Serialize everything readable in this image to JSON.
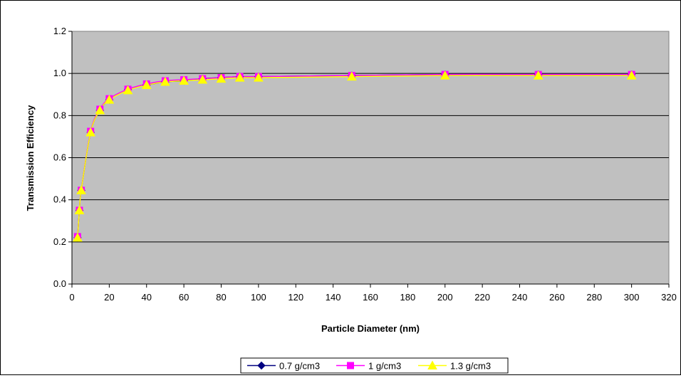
{
  "chart_data": {
    "type": "line",
    "title": "",
    "xlabel": "Particle Diameter (nm)",
    "ylabel": "Transmission Efficiency",
    "xlim": [
      0,
      320
    ],
    "ylim": [
      0,
      1.2
    ],
    "x_ticks": [
      "0",
      "20",
      "40",
      "60",
      "80",
      "100",
      "120",
      "140",
      "160",
      "180",
      "200",
      "220",
      "240",
      "260",
      "280",
      "300",
      "320"
    ],
    "y_ticks": [
      "0.0",
      "0.2",
      "0.4",
      "0.6",
      "0.8",
      "1.0",
      "1.2"
    ],
    "grid": "horizontal",
    "plot_background": "#c0c0c0",
    "legend_position": "bottom",
    "x": [
      3,
      4,
      5,
      10,
      15,
      20,
      30,
      40,
      50,
      60,
      70,
      80,
      90,
      100,
      150,
      200,
      250,
      300
    ],
    "series": [
      {
        "name": "0.7 g/cm3",
        "color": "#000080",
        "marker": "diamond",
        "values": [
          0.22,
          0.35,
          0.445,
          0.72,
          0.825,
          0.875,
          0.925,
          0.945,
          0.96,
          0.965,
          0.975,
          0.98,
          0.985,
          0.985,
          0.99,
          0.995,
          0.995,
          0.995
        ]
      },
      {
        "name": "1 g/cm3",
        "color": "#ff00ff",
        "marker": "square",
        "values": [
          0.225,
          0.35,
          0.445,
          0.725,
          0.83,
          0.88,
          0.925,
          0.95,
          0.965,
          0.97,
          0.975,
          0.98,
          0.985,
          0.985,
          0.99,
          0.995,
          0.995,
          0.995
        ]
      },
      {
        "name": "1.3 g/cm3",
        "color": "#ffff00",
        "marker": "triangle",
        "values": [
          0.22,
          0.35,
          0.445,
          0.72,
          0.825,
          0.875,
          0.92,
          0.945,
          0.96,
          0.965,
          0.97,
          0.975,
          0.98,
          0.98,
          0.985,
          0.99,
          0.99,
          0.99
        ]
      }
    ]
  }
}
